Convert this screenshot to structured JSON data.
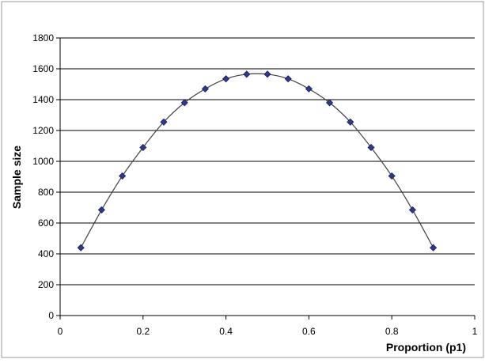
{
  "chart_data": {
    "type": "scatter",
    "title": "",
    "xlabel": "Proportion (p1)",
    "ylabel": "Sample size",
    "xlim": [
      0,
      1
    ],
    "ylim": [
      0,
      1800
    ],
    "x_ticks": [
      0,
      0.2,
      0.4,
      0.6,
      0.8,
      1
    ],
    "x_tick_labels": [
      "0",
      "0.2",
      "0.4",
      "0.6",
      "0.8",
      "1"
    ],
    "y_ticks": [
      0,
      200,
      400,
      600,
      800,
      1000,
      1200,
      1400,
      1600,
      1800
    ],
    "y_tick_labels": [
      "0",
      "200",
      "400",
      "600",
      "800",
      "1000",
      "1200",
      "1400",
      "1600",
      "1800"
    ],
    "grid": "horizontal",
    "legend": "none",
    "trendline": "smooth curve through points",
    "colors": {
      "marker": "#2e3a87",
      "marker_edge": "#1a2260",
      "curve": "#404040",
      "grid": "#000000",
      "frame": "#808080"
    },
    "series": [
      {
        "marker": "diamond",
        "x": [
          0.05,
          0.1,
          0.15,
          0.2,
          0.25,
          0.3,
          0.35,
          0.4,
          0.45,
          0.5,
          0.55,
          0.6,
          0.65,
          0.7,
          0.75,
          0.8,
          0.85,
          0.9
        ],
        "y": [
          440,
          685,
          905,
          1090,
          1255,
          1380,
          1470,
          1535,
          1565,
          1565,
          1535,
          1470,
          1380,
          1255,
          1090,
          905,
          685,
          440
        ]
      }
    ]
  }
}
